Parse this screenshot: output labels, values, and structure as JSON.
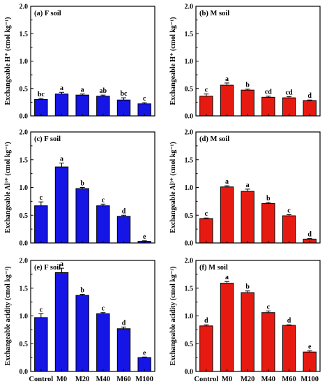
{
  "chart_data": [
    {
      "type": "bar",
      "panel_label": "(a) F soil",
      "ylabel": "Exchangeable H⁺ (cmol kg⁻¹)",
      "ylim": [
        0,
        2.0
      ],
      "yticks": [
        "0.0",
        "0.5",
        "1.0",
        "1.5",
        "2.0"
      ],
      "categories": [
        "Control",
        "M0",
        "M20",
        "M40",
        "M60",
        "M100"
      ],
      "values": [
        0.3,
        0.4,
        0.38,
        0.36,
        0.29,
        0.22
      ],
      "errors": [
        0.02,
        0.03,
        0.02,
        0.02,
        0.04,
        0.02
      ],
      "letters": [
        "bc",
        "a",
        "a",
        "ab",
        "bc",
        "c"
      ],
      "color": "#1515e6"
    },
    {
      "type": "bar",
      "panel_label": "(b) M soil",
      "ylabel": "Exchangeable H⁺ (cmol kg⁻¹)",
      "ylim": [
        0,
        2.0
      ],
      "yticks": [
        "0.0",
        "0.5",
        "1.0",
        "1.5",
        "2.0"
      ],
      "categories": [
        "Control",
        "M0",
        "M20",
        "M40",
        "M60",
        "M100"
      ],
      "values": [
        0.36,
        0.56,
        0.47,
        0.34,
        0.33,
        0.28
      ],
      "errors": [
        0.04,
        0.04,
        0.02,
        0.02,
        0.02,
        0.01
      ],
      "letters": [
        "c",
        "a",
        "b",
        "cd",
        "cd",
        "d"
      ],
      "color": "#e61a10"
    },
    {
      "type": "bar",
      "panel_label": "(c) F soil",
      "ylabel": "Exchangeable Al³⁺ (cmol kg⁻¹)",
      "ylim": [
        0,
        2.0
      ],
      "yticks": [
        "0.0",
        "0.5",
        "1.0",
        "1.5",
        "2.0"
      ],
      "categories": [
        "Control",
        "M0",
        "M20",
        "M40",
        "M60",
        "M100"
      ],
      "values": [
        0.67,
        1.37,
        0.98,
        0.67,
        0.48,
        0.03
      ],
      "errors": [
        0.07,
        0.07,
        0.02,
        0.03,
        0.02,
        0.01
      ],
      "letters": [
        "c",
        "a",
        "b",
        "c",
        "d",
        "e"
      ],
      "color": "#1515e6"
    },
    {
      "type": "bar",
      "panel_label": "(d) M soil",
      "ylabel": "Exchangeable Al³⁺ (cmol kg⁻¹)",
      "ylim": [
        0,
        2.0
      ],
      "yticks": [
        "0.0",
        "0.5",
        "1.0",
        "1.5",
        "2.0"
      ],
      "categories": [
        "Control",
        "M0",
        "M20",
        "M40",
        "M60",
        "M100"
      ],
      "values": [
        0.44,
        1.01,
        0.93,
        0.71,
        0.49,
        0.07
      ],
      "errors": [
        0.01,
        0.02,
        0.04,
        0.02,
        0.02,
        0.01
      ],
      "letters": [
        "c",
        "a",
        "a",
        "b",
        "c",
        "d"
      ],
      "color": "#e61a10"
    },
    {
      "type": "bar",
      "panel_label": "(e) F soil",
      "ylabel": "Exchangeable acidity (cmol kg⁻¹)",
      "ylim": [
        0,
        2.0
      ],
      "yticks": [
        "0.0",
        "0.5",
        "1.0",
        "1.5",
        "2.0"
      ],
      "categories": [
        "Control",
        "M0",
        "M20",
        "M40",
        "M60",
        "M100"
      ],
      "values": [
        0.97,
        1.78,
        1.37,
        1.04,
        0.77,
        0.25
      ],
      "errors": [
        0.07,
        0.08,
        0.02,
        0.02,
        0.03,
        0.01
      ],
      "letters": [
        "c",
        "a",
        "b",
        "c",
        "d",
        "e"
      ],
      "color": "#1515e6"
    },
    {
      "type": "bar",
      "panel_label": "(f) M soil",
      "ylabel": "Exchangeable acidity (cmol kg⁻¹)",
      "ylim": [
        0,
        2.0
      ],
      "yticks": [
        "0.0",
        "0.5",
        "1.0",
        "1.5",
        "2.0"
      ],
      "categories": [
        "Control",
        "M0",
        "M20",
        "M40",
        "M60",
        "M100"
      ],
      "values": [
        0.82,
        1.59,
        1.42,
        1.06,
        0.83,
        0.35
      ],
      "errors": [
        0.02,
        0.03,
        0.03,
        0.03,
        0.01,
        0.02
      ],
      "letters": [
        "d",
        "a",
        "b",
        "c",
        "d",
        "e"
      ],
      "color": "#e61a10"
    }
  ]
}
